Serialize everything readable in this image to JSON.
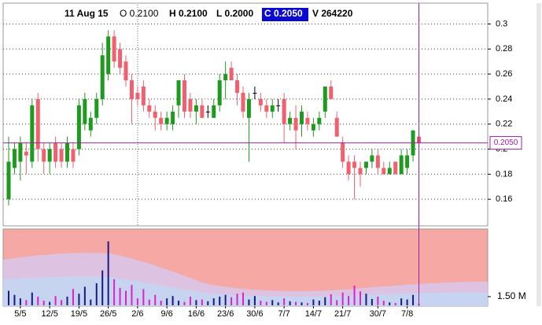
{
  "chart_data": {
    "type": "candlestick",
    "header": {
      "date": "11 Aug 15",
      "open": "O 0.2100",
      "high": "H 0.2100",
      "low": "L 0.2000",
      "close": "C 0.2050",
      "volume": "V 264220"
    },
    "categories": [
      null,
      null,
      "5/5",
      null,
      null,
      null,
      null,
      "12/5",
      null,
      null,
      null,
      null,
      "19/5",
      null,
      null,
      null,
      null,
      "26/5",
      null,
      null,
      null,
      null,
      "2/6",
      null,
      null,
      null,
      null,
      "9/6",
      null,
      null,
      null,
      null,
      "16/6",
      null,
      null,
      null,
      null,
      "23/6",
      null,
      null,
      null,
      null,
      "30/6",
      null,
      null,
      null,
      null,
      "7/7",
      null,
      null,
      null,
      null,
      "14/7",
      null,
      null,
      null,
      null,
      "21/7",
      null,
      null,
      null,
      null,
      null,
      "30/7",
      null,
      null,
      null,
      null,
      "7/8",
      null,
      null
    ],
    "open": [
      0.16,
      0.185,
      0.19,
      0.198,
      0.19,
      0.24,
      0.2,
      0.19,
      0.205,
      0.2,
      0.19,
      0.2,
      0.2,
      0.22,
      0.215,
      0.225,
      0.24,
      0.26,
      0.29,
      0.28,
      0.27,
      0.255,
      0.245,
      0.25,
      0.235,
      0.23,
      0.225,
      0.22,
      0.22,
      0.235,
      0.255,
      0.24,
      0.23,
      0.235,
      0.23,
      0.225,
      0.235,
      0.255,
      0.265,
      0.255,
      0.245,
      0.225,
      0.245,
      0.24,
      0.235,
      0.23,
      0.235,
      0.24,
      0.22,
      0.225,
      0.22,
      0.225,
      0.215,
      0.22,
      0.23,
      0.25,
      0.225,
      0.205,
      0.19,
      0.19,
      0.185,
      0.185,
      0.19,
      0.195,
      0.185,
      0.18,
      0.19,
      0.18,
      0.185,
      0.195,
      0.21
    ],
    "high": [
      0.21,
      0.205,
      0.21,
      0.205,
      0.24,
      0.245,
      0.205,
      0.205,
      0.21,
      0.205,
      0.21,
      0.205,
      0.24,
      0.245,
      0.23,
      0.245,
      0.285,
      0.295,
      0.295,
      0.285,
      0.275,
      0.26,
      0.25,
      0.255,
      0.24,
      0.235,
      0.23,
      0.23,
      0.235,
      0.255,
      0.26,
      0.245,
      0.24,
      0.24,
      0.235,
      0.24,
      0.26,
      0.27,
      0.27,
      0.26,
      0.25,
      0.245,
      0.25,
      0.245,
      0.24,
      0.24,
      0.24,
      0.245,
      0.23,
      0.235,
      0.235,
      0.23,
      0.225,
      0.23,
      0.25,
      0.255,
      0.23,
      0.21,
      0.195,
      0.195,
      0.19,
      0.19,
      0.2,
      0.2,
      0.19,
      0.19,
      0.19,
      0.2,
      0.2,
      0.215,
      0.21
    ],
    "low": [
      0.155,
      0.18,
      0.175,
      0.18,
      0.185,
      0.19,
      0.18,
      0.18,
      0.185,
      0.185,
      0.185,
      0.185,
      0.195,
      0.215,
      0.21,
      0.22,
      0.235,
      0.255,
      0.265,
      0.26,
      0.25,
      0.22,
      0.235,
      0.23,
      0.225,
      0.215,
      0.215,
      0.215,
      0.215,
      0.225,
      0.225,
      0.225,
      0.22,
      0.225,
      0.225,
      0.225,
      0.23,
      0.24,
      0.255,
      0.235,
      0.225,
      0.19,
      0.24,
      0.23,
      0.225,
      0.225,
      0.23,
      0.205,
      0.215,
      0.2,
      0.21,
      0.215,
      0.21,
      0.215,
      0.225,
      0.24,
      0.21,
      0.185,
      0.175,
      0.16,
      0.17,
      0.18,
      0.185,
      0.18,
      0.18,
      0.18,
      0.18,
      0.18,
      0.18,
      0.19,
      0.2
    ],
    "close": [
      0.19,
      0.2,
      0.205,
      0.195,
      0.235,
      0.2,
      0.19,
      0.2,
      0.19,
      0.19,
      0.205,
      0.19,
      0.235,
      0.24,
      0.225,
      0.24,
      0.275,
      0.29,
      0.27,
      0.265,
      0.255,
      0.24,
      0.24,
      0.235,
      0.23,
      0.225,
      0.22,
      0.225,
      0.23,
      0.255,
      0.23,
      0.23,
      0.235,
      0.225,
      0.23,
      0.235,
      0.255,
      0.26,
      0.255,
      0.245,
      0.23,
      0.24,
      0.245,
      0.235,
      0.23,
      0.235,
      0.235,
      0.22,
      0.225,
      0.215,
      0.23,
      0.22,
      0.22,
      0.225,
      0.25,
      0.24,
      0.21,
      0.19,
      0.18,
      0.185,
      0.18,
      0.19,
      0.195,
      0.185,
      0.18,
      0.185,
      0.18,
      0.195,
      0.195,
      0.215,
      0.205
    ],
    "volume": [
      2500000,
      1800000,
      1200000,
      900000,
      2200000,
      1500000,
      800000,
      600000,
      1600000,
      900000,
      1500000,
      2800000,
      2000000,
      3200000,
      1000000,
      3800000,
      6000000,
      11000000,
      4500000,
      3000000,
      2500000,
      3500000,
      1200000,
      2800000,
      1000000,
      1800000,
      800000,
      1200000,
      1600000,
      800000,
      600000,
      1500000,
      900000,
      1000000,
      700000,
      1200000,
      1500000,
      1800000,
      1400000,
      2000000,
      2200000,
      1000000,
      1600000,
      800000,
      600000,
      900000,
      500000,
      1200000,
      700000,
      600000,
      500000,
      400000,
      1000000,
      800000,
      1400000,
      1900000,
      900000,
      2200000,
      1600000,
      3400000,
      2400000,
      2000000,
      1100000,
      1500000,
      800000,
      500000,
      400000,
      1200000,
      1000000,
      1800000,
      264220
    ],
    "ylim": [
      0.14,
      0.316
    ],
    "yticks": [
      0.3,
      0.28,
      0.26,
      0.24,
      0.22,
      0.2,
      0.18,
      0.16
    ],
    "volume_ylim": [
      0,
      13000000
    ],
    "volume_yticks": [
      {
        "value": 1500000,
        "label": "1.50 M"
      }
    ],
    "cursor": {
      "value": 0.205,
      "label": "0.2050"
    },
    "grid": true,
    "up_color": "#1e9a1e",
    "down_color": "#f0606e",
    "flat_color": "#000000",
    "volume_up_color": "#1a1a80",
    "volume_down_color": "#e020c8",
    "cursor_color": "#a020a0"
  }
}
